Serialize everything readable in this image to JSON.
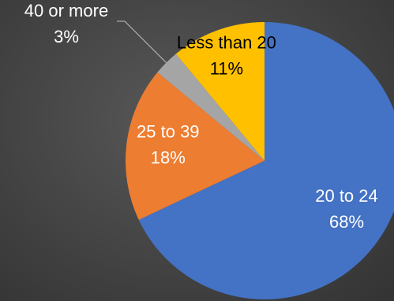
{
  "chart_data": {
    "type": "pie",
    "title": "",
    "slices": [
      {
        "category": "20 to 24",
        "value": 68,
        "value_label": "68%",
        "color": "#4472C4",
        "label_color": "#ffffff"
      },
      {
        "category": "25 to 39",
        "value": 18,
        "value_label": "18%",
        "color": "#ED7D31",
        "label_color": "#ffffff"
      },
      {
        "category": "40 or more",
        "value": 3,
        "value_label": "3%",
        "color": "#A5A5A5",
        "label_color": "#ffffff"
      },
      {
        "category": "Less than 20",
        "value": 11,
        "value_label": "11%",
        "color": "#FFC000",
        "label_color": "#000000"
      }
    ],
    "start_angle": "12 o'clock",
    "direction": "clockwise",
    "legend": "none",
    "background": "#404040"
  }
}
